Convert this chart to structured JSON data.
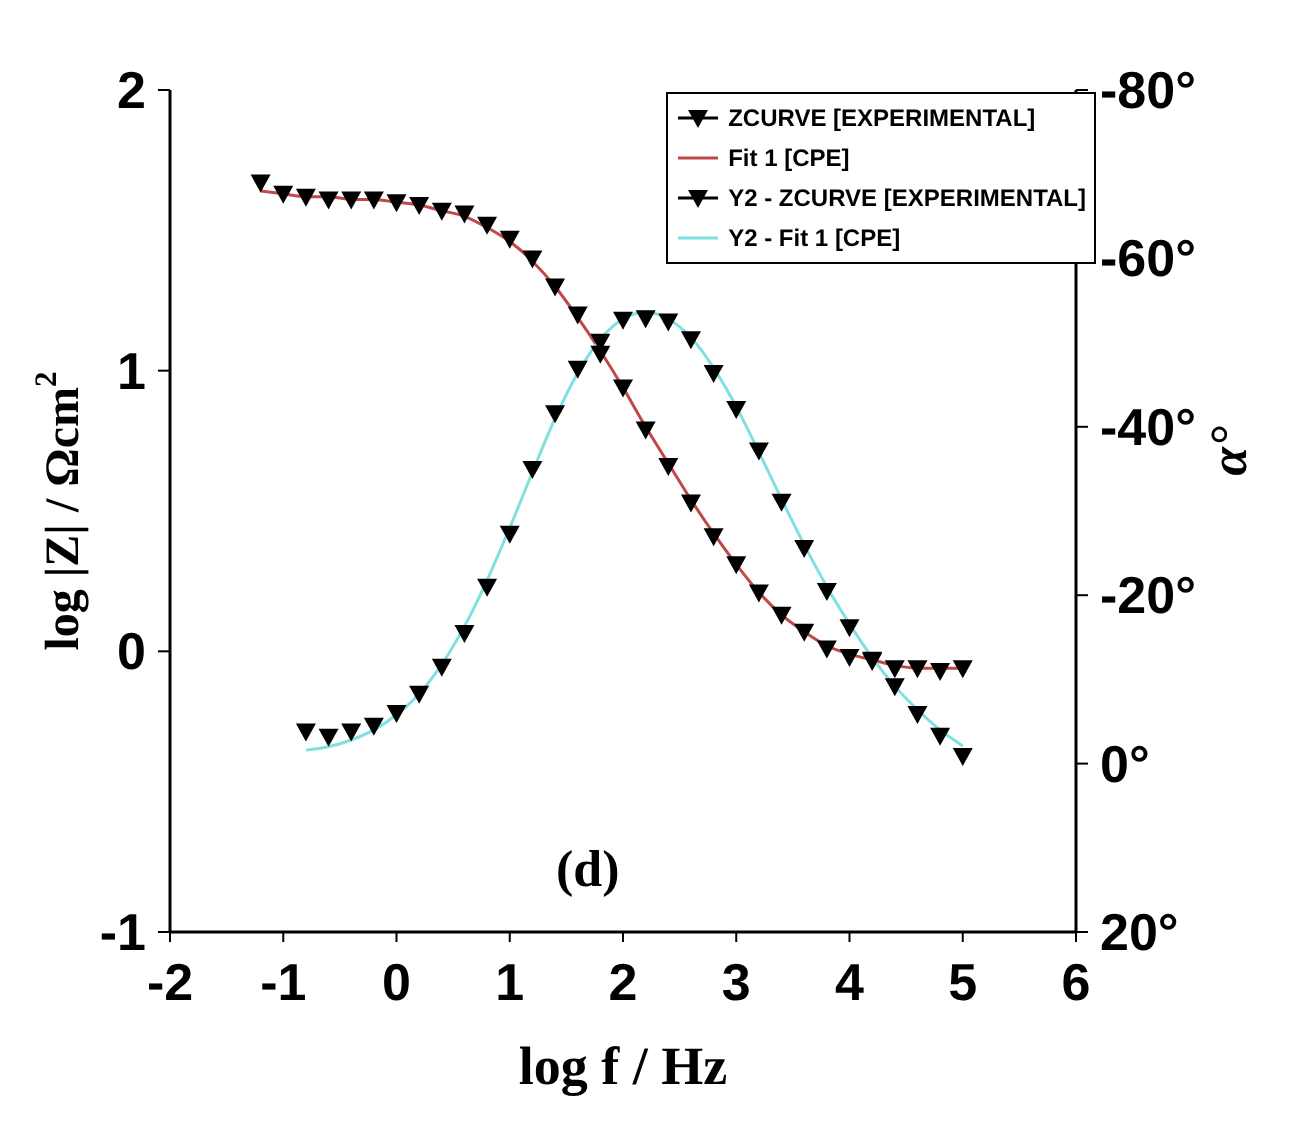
{
  "chart_data": {
    "type": "line",
    "xlabel": "log f / Hz",
    "ylabel": "log |Z| / Ωcm$^{2}$",
    "y2label": "α°",
    "annotations": [
      "(d)"
    ],
    "xlim": [
      -2,
      6
    ],
    "xticks": [
      -2,
      -1,
      0,
      1,
      2,
      3,
      4,
      5,
      6
    ],
    "ylim": [
      -1,
      2
    ],
    "yticks": [
      -1,
      0,
      1,
      2
    ],
    "y2lim": [
      20,
      -80
    ],
    "y2ticks": [
      {
        "value": 20,
        "label": "20°"
      },
      {
        "value": 0,
        "label": "0°"
      },
      {
        "value": -20,
        "label": "-20°"
      },
      {
        "value": -40,
        "label": "-40°"
      },
      {
        "value": -60,
        "label": "-60°"
      },
      {
        "value": -80,
        "label": "-80°"
      }
    ],
    "legend": "top right",
    "grid": false,
    "series": [
      {
        "name": "ZCURVE [EXPERIMENTAL]",
        "type": "scatter",
        "marker": "triangle",
        "color": "#000000",
        "x": [
          -1.2,
          -1.0,
          -0.8,
          -0.6,
          -0.4,
          -0.2,
          0,
          0.2,
          0.4,
          0.6,
          0.8,
          1.0,
          1.2,
          1.4,
          1.6,
          1.8,
          2.0,
          2.2,
          2.4,
          2.6,
          2.8,
          3.0,
          3.2,
          3.4,
          3.6,
          3.8,
          4.0,
          4.2,
          4.4,
          4.6,
          4.8,
          5.0
        ],
        "values": [
          1.67,
          1.63,
          1.62,
          1.61,
          1.61,
          1.61,
          1.6,
          1.59,
          1.57,
          1.56,
          1.52,
          1.47,
          1.4,
          1.3,
          1.2,
          1.06,
          0.94,
          0.79,
          0.66,
          0.53,
          0.41,
          0.31,
          0.21,
          0.13,
          0.07,
          0.01,
          -0.02,
          -0.03,
          -0.06,
          -0.06,
          -0.07,
          -0.06
        ]
      },
      {
        "name": "Fit 1 [CPE]",
        "color": "#c04848",
        "x": [
          -1.2,
          -1.0,
          -0.8,
          -0.6,
          -0.4,
          -0.2,
          0,
          0.2,
          0.4,
          0.6,
          0.8,
          1.0,
          1.2,
          1.4,
          1.6,
          1.8,
          2.0,
          2.2,
          2.4,
          2.6,
          2.8,
          3.0,
          3.2,
          3.4,
          3.6,
          3.8,
          4.0,
          4.2,
          4.4,
          4.6,
          4.8,
          5.0
        ],
        "values": [
          1.64,
          1.63,
          1.62,
          1.62,
          1.61,
          1.61,
          1.6,
          1.59,
          1.57,
          1.55,
          1.51,
          1.46,
          1.39,
          1.3,
          1.19,
          1.07,
          0.94,
          0.8,
          0.67,
          0.54,
          0.42,
          0.31,
          0.21,
          0.13,
          0.07,
          0.02,
          -0.01,
          -0.03,
          -0.05,
          -0.06,
          -0.06,
          -0.06
        ]
      },
      {
        "name": "Y2 - ZCURVE [EXPERIMENTAL]",
        "type": "scatter",
        "marker": "triangle",
        "axis": "y2",
        "color": "#000000",
        "x": [
          -0.8,
          -0.6,
          -0.4,
          -0.2,
          0,
          0.2,
          0.4,
          0.6,
          0.8,
          1.0,
          1.2,
          1.4,
          1.6,
          1.8,
          2.0,
          2.2,
          2.4,
          2.6,
          2.8,
          3.0,
          3.2,
          3.4,
          3.6,
          3.8,
          4.0,
          4.2,
          4.4,
          4.6,
          4.8,
          5.0
        ],
        "values": [
          -3.8,
          -3.2,
          -3.8,
          -4.5,
          -6,
          -8.3,
          -11.5,
          -15.5,
          -21,
          -27.3,
          -35,
          -41.6,
          -46.9,
          -50.1,
          -52.7,
          -52.9,
          -52.5,
          -50.4,
          -46.4,
          -42.1,
          -37.2,
          -31.1,
          -25.6,
          -20.5,
          -16.2,
          -12.2,
          -9.2,
          -5.9,
          -3.3,
          -0.9
        ]
      },
      {
        "name": "Y2 - Fit 1 [CPE]",
        "axis": "y2",
        "color": "#80e0e0",
        "x": [
          -0.8,
          -0.6,
          -0.4,
          -0.2,
          0,
          0.2,
          0.4,
          0.6,
          0.8,
          1.0,
          1.2,
          1.4,
          1.6,
          1.8,
          2.0,
          2.2,
          2.4,
          2.6,
          2.8,
          3.0,
          3.2,
          3.4,
          3.6,
          3.8,
          4.0,
          4.2,
          4.4,
          4.6,
          4.8,
          5.0
        ],
        "values": [
          -1.6,
          -2.0,
          -2.8,
          -4.0,
          -5.8,
          -8.3,
          -11.8,
          -16.3,
          -21.8,
          -28.0,
          -34.6,
          -41.0,
          -46.4,
          -50.4,
          -52.8,
          -53.6,
          -52.8,
          -50.6,
          -47.0,
          -42.4,
          -37.0,
          -31.4,
          -26.0,
          -21.0,
          -16.6,
          -12.6,
          -9.2,
          -6.4,
          -4.0,
          -2.1
        ]
      }
    ]
  }
}
